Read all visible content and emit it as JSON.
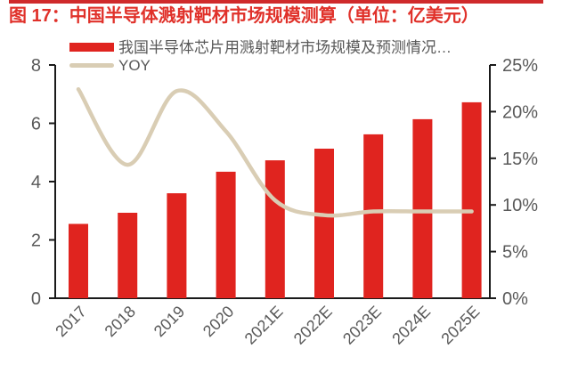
{
  "figure": {
    "title": "图 17：中国半导体溅射靶材市场规模测算（单位：亿美元）"
  },
  "colors": {
    "bar_red": "#e0241f",
    "title_red": "#e0312a",
    "accent_strip_red": "#cf2a2b",
    "yoy_line_beige": "#d9cdb4",
    "axis_text_gray": "#595959",
    "axis_line_black": "#1a1a1a"
  },
  "chart_data": {
    "type": "bar+line",
    "categories": [
      "2017",
      "2018",
      "2019",
      "2020",
      "2021E",
      "2022E",
      "2023E",
      "2024E",
      "2025E"
    ],
    "series": [
      {
        "name": "我国半导体芯片用溅射靶材市场规模及预测情况…",
        "type": "bar",
        "axis": "left",
        "unit": "亿美元",
        "color": "#e0241f",
        "values": [
          2.55,
          2.93,
          3.6,
          4.34,
          4.73,
          5.13,
          5.62,
          6.14,
          6.72
        ]
      },
      {
        "name": "YOY",
        "type": "line",
        "axis": "right",
        "unit": "%",
        "color": "#d9cdb4",
        "smooth": true,
        "values": [
          22.4,
          14.3,
          22.2,
          17.9,
          10.5,
          8.9,
          9.3,
          9.3,
          9.3
        ]
      }
    ],
    "left_axis": {
      "min": 0,
      "max": 8,
      "tick_labels": [
        "0",
        "2",
        "4",
        "6",
        "8"
      ]
    },
    "right_axis": {
      "min": 0,
      "max": 25,
      "tick_labels": [
        "0%",
        "5%",
        "10%",
        "15%",
        "20%",
        "25%"
      ]
    },
    "x_label_rotation_deg": -45,
    "grid": false,
    "legend_position": "top-left"
  }
}
